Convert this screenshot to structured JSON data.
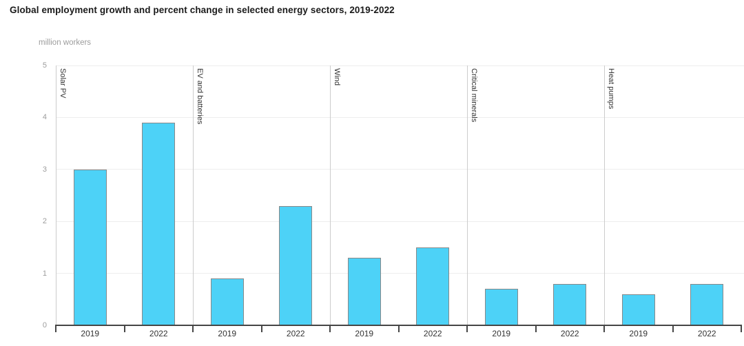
{
  "chart_data": {
    "type": "bar",
    "title": "Global employment growth and percent change in selected energy sectors, 2019-2022",
    "ylabel": "million workers",
    "xlabel": "",
    "ylim": [
      0,
      5
    ],
    "y_ticks": [
      0,
      1,
      2,
      3,
      4,
      5
    ],
    "grid": "horizontal",
    "legend": "none",
    "categories": [
      "2019",
      "2022"
    ],
    "sectors": [
      {
        "name": "Solar PV",
        "categories": [
          "2019",
          "2022"
        ],
        "values": [
          3.0,
          3.9
        ]
      },
      {
        "name": "EV and batteries",
        "categories": [
          "2019",
          "2022"
        ],
        "values": [
          0.9,
          2.3
        ]
      },
      {
        "name": "Wind",
        "categories": [
          "2019",
          "2022"
        ],
        "values": [
          1.3,
          1.5
        ]
      },
      {
        "name": "Critical minerals",
        "categories": [
          "2019",
          "2022"
        ],
        "values": [
          0.7,
          0.8
        ]
      },
      {
        "name": "Heat pumps",
        "categories": [
          "2019",
          "2022"
        ],
        "values": [
          0.6,
          0.8
        ]
      }
    ],
    "colors": {
      "bar_fill": "#4DD2F7",
      "bar_border": "#888888",
      "gridline": "#ededed",
      "sector_divider": "#cccccc",
      "axis_line": "#454545",
      "y_tick_label": "#9c9c9c",
      "x_tick_label": "#333333",
      "sector_label": "#333333",
      "title": "#1a1a1a"
    }
  }
}
